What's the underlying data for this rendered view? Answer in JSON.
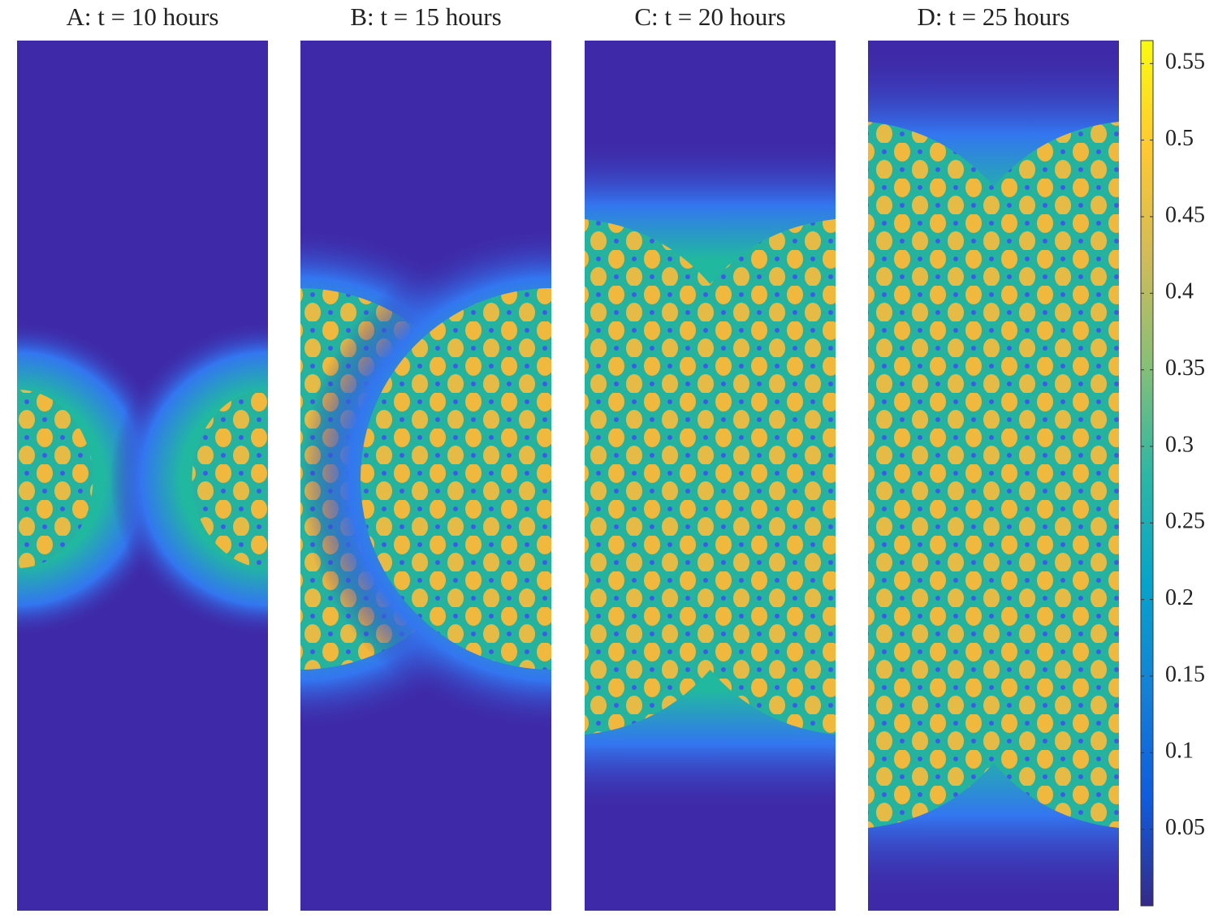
{
  "chart_data": {
    "type": "heatmap",
    "panels": [
      {
        "title": "A: t = 10 hours"
      },
      {
        "title": "B: t = 15 hours"
      },
      {
        "title": "C: t = 20 hours"
      },
      {
        "title": "D: t = 25 hours"
      }
    ],
    "colorbar": {
      "clim": [
        0,
        0.565
      ],
      "ticks": [
        0.05,
        0.1,
        0.15,
        0.2,
        0.25,
        0.3,
        0.35,
        0.4,
        0.45,
        0.5,
        0.55
      ],
      "colormap": [
        "#352a87",
        "#0f5cdd",
        "#1481d6",
        "#06a4ca",
        "#2eb7a4",
        "#87bf77",
        "#d1bb59",
        "#fec832",
        "#f9fb0e"
      ]
    }
  }
}
